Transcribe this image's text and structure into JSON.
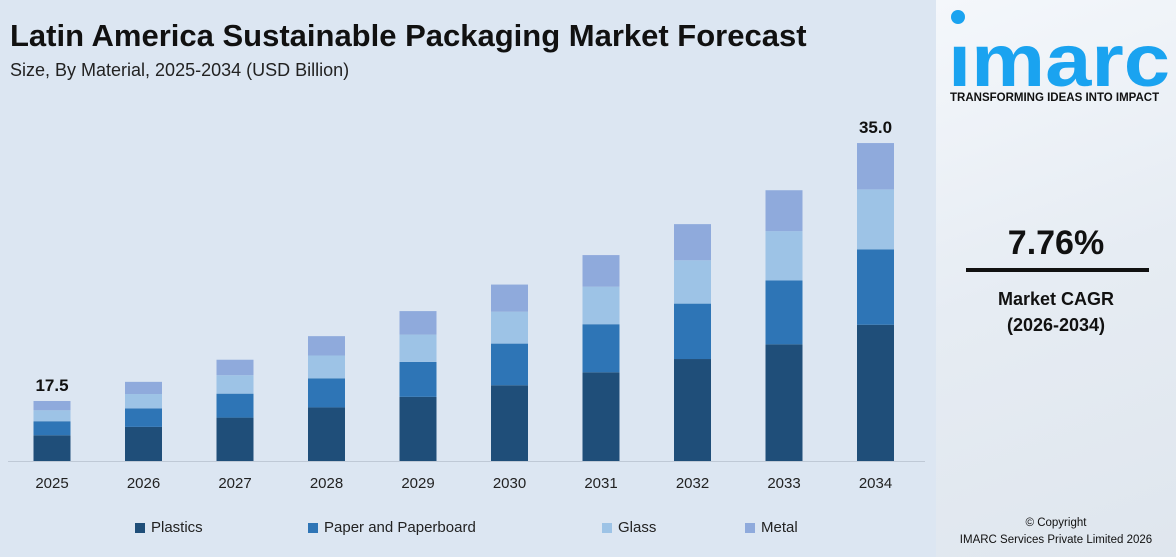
{
  "chart_data": {
    "type": "bar",
    "stacked": true,
    "title": "Latin America Sustainable Packaging Market Forecast",
    "subtitle": "Size, By Material, 2025-2034 (USD Billion)",
    "categories": [
      "2025",
      "2026",
      "2027",
      "2028",
      "2029",
      "2030",
      "2031",
      "2032",
      "2033",
      "2034"
    ],
    "series": [
      {
        "name": "Plastics",
        "color": "#1f4e79",
        "values": [
          7.5,
          8.1,
          8.7,
          9.4,
          10.1,
          10.9,
          11.8,
          12.7,
          13.7,
          15.0
        ]
      },
      {
        "name": "Paper and Paperboard",
        "color": "#2e75b6",
        "values": [
          4.1,
          4.4,
          4.8,
          5.1,
          5.5,
          6.0,
          6.4,
          6.9,
          7.5,
          8.3
        ]
      },
      {
        "name": "Glass",
        "color": "#9dc3e6",
        "values": [
          3.2,
          3.4,
          3.7,
          4.0,
          4.3,
          4.6,
          5.0,
          5.4,
          5.8,
          6.6
        ]
      },
      {
        "name": "Metal",
        "color": "#8faadc",
        "values": [
          2.7,
          2.9,
          3.1,
          3.4,
          3.7,
          3.9,
          4.2,
          4.5,
          4.8,
          5.1
        ]
      }
    ],
    "data_labels": {
      "2025": "17.5",
      "2034": "35.0"
    },
    "grid": false,
    "legend_placement": "bottom"
  },
  "brand": {
    "logo_text": "imarc",
    "tagline": "TRANSFORMING IDEAS INTO IMPACT",
    "color": "#1aa3f0"
  },
  "cagr": {
    "value": "7.76%",
    "label": "Market CAGR",
    "period": "(2026-2034)"
  },
  "copyright": {
    "line1": "© Copyright",
    "line2": "IMARC Services Private Limited 2026"
  }
}
